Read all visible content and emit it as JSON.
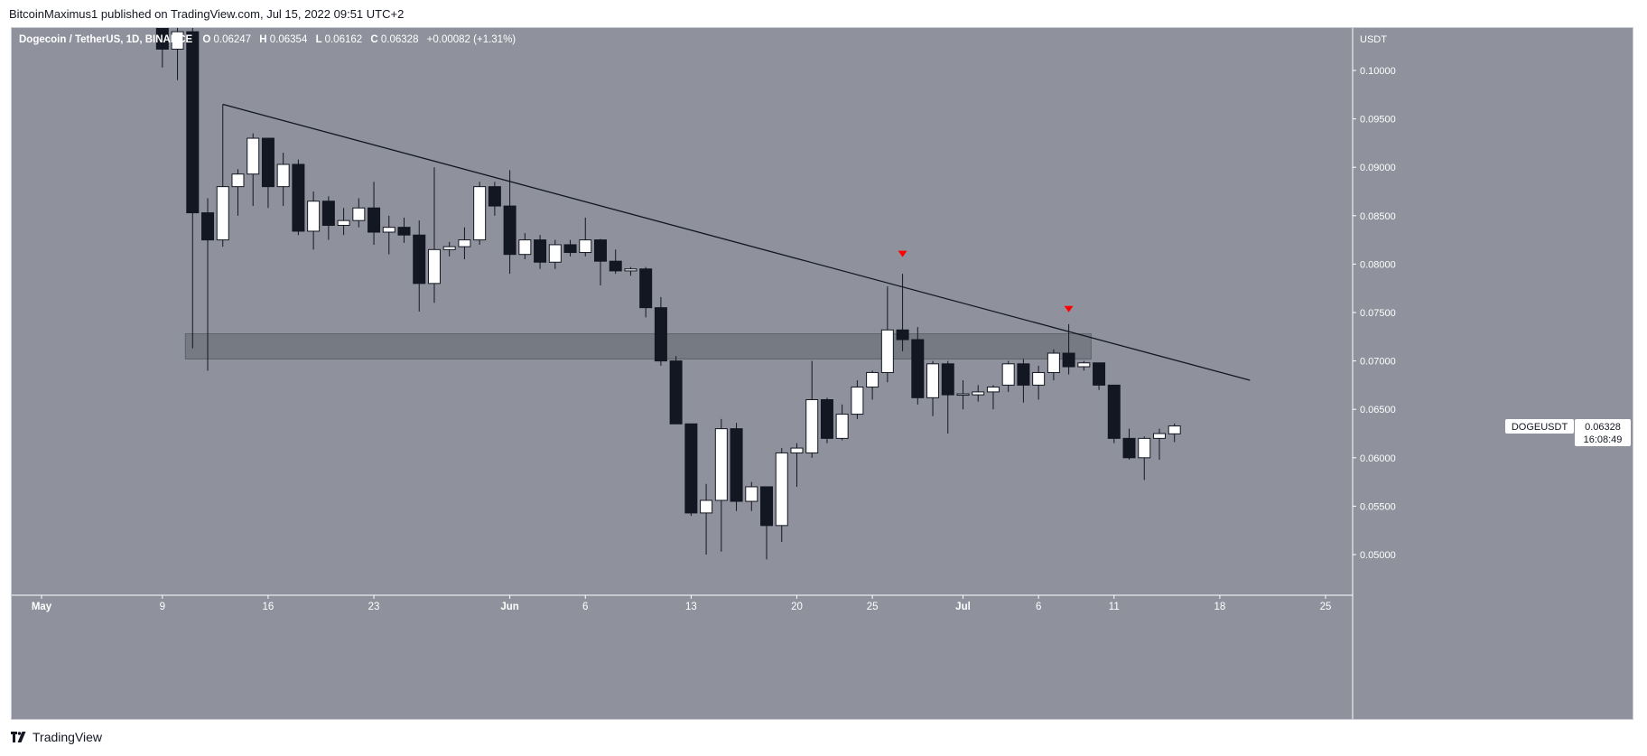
{
  "header": {
    "publish_text": "BitcoinMaximus1 published on TradingView.com, Jul 15, 2022 09:51 UTC+2"
  },
  "footer": {
    "brand": "TradingView"
  },
  "legend": {
    "symbol": "Dogecoin / TetherUS, 1D, BINANCE",
    "o_label": "O",
    "o_value": "0.06247",
    "h_label": "H",
    "h_value": "0.06354",
    "l_label": "L",
    "l_value": "0.06162",
    "c_label": "C",
    "c_value": "0.06328",
    "change": "+0.00082 (+1.31%)"
  },
  "price_scale": {
    "currency": "USDT",
    "tag_symbol": "DOGEUSDT",
    "tag_price": "0.06328",
    "tag_countdown": "16:08:49"
  },
  "colors": {
    "background": "#8f929c",
    "price_panel": "#8f929c",
    "up_body": "#ffffff",
    "down_body": "#131722",
    "wick": "#131722",
    "trendline": "#131722",
    "zone": "#6e717b",
    "marker": "#ff0000",
    "axis_text": "#ffffff"
  },
  "chart_data": {
    "type": "candlestick",
    "title": "Dogecoin / TetherUS, 1D, BINANCE",
    "ylabel": "USDT",
    "ylim": [
      0.0455,
      0.1025
    ],
    "yticks": [
      "0.10000",
      "0.09500",
      "0.09000",
      "0.08500",
      "0.08000",
      "0.07500",
      "0.07000",
      "0.06500",
      "0.06000",
      "0.05500",
      "0.05000"
    ],
    "xticks": [
      {
        "label": "May",
        "date": "2022-05-01"
      },
      {
        "label": "9",
        "date": "2022-05-09"
      },
      {
        "label": "16",
        "date": "2022-05-16"
      },
      {
        "label": "23",
        "date": "2022-05-23"
      },
      {
        "label": "Jun",
        "date": "2022-06-01"
      },
      {
        "label": "6",
        "date": "2022-06-06"
      },
      {
        "label": "13",
        "date": "2022-06-13"
      },
      {
        "label": "20",
        "date": "2022-06-20"
      },
      {
        "label": "25",
        "date": "2022-06-25"
      },
      {
        "label": "Jul",
        "date": "2022-07-01"
      },
      {
        "label": "6",
        "date": "2022-07-06"
      },
      {
        "label": "11",
        "date": "2022-07-11"
      },
      {
        "label": "18",
        "date": "2022-07-18"
      },
      {
        "label": "25",
        "date": "2022-07-25"
      }
    ],
    "candles": [
      {
        "date": "2022-05-09",
        "o": 0.1085,
        "h": 0.112,
        "l": 0.1003,
        "c": 0.1022
      },
      {
        "date": "2022-05-10",
        "o": 0.1022,
        "h": 0.106,
        "l": 0.099,
        "c": 0.104
      },
      {
        "date": "2022-05-11",
        "o": 0.104,
        "h": 0.108,
        "l": 0.0713,
        "c": 0.0853
      },
      {
        "date": "2022-05-12",
        "o": 0.0853,
        "h": 0.0868,
        "l": 0.069,
        "c": 0.0825
      },
      {
        "date": "2022-05-13",
        "o": 0.0825,
        "h": 0.0965,
        "l": 0.0818,
        "c": 0.088
      },
      {
        "date": "2022-05-14",
        "o": 0.088,
        "h": 0.0898,
        "l": 0.085,
        "c": 0.0893
      },
      {
        "date": "2022-05-15",
        "o": 0.0893,
        "h": 0.0935,
        "l": 0.086,
        "c": 0.093
      },
      {
        "date": "2022-05-16",
        "o": 0.093,
        "h": 0.093,
        "l": 0.0858,
        "c": 0.088
      },
      {
        "date": "2022-05-17",
        "o": 0.088,
        "h": 0.0915,
        "l": 0.086,
        "c": 0.0903
      },
      {
        "date": "2022-05-18",
        "o": 0.0903,
        "h": 0.0908,
        "l": 0.083,
        "c": 0.0834
      },
      {
        "date": "2022-05-19",
        "o": 0.0834,
        "h": 0.0875,
        "l": 0.0815,
        "c": 0.0865
      },
      {
        "date": "2022-05-20",
        "o": 0.0865,
        "h": 0.087,
        "l": 0.0825,
        "c": 0.084
      },
      {
        "date": "2022-05-21",
        "o": 0.084,
        "h": 0.0858,
        "l": 0.083,
        "c": 0.0845
      },
      {
        "date": "2022-05-22",
        "o": 0.0845,
        "h": 0.0868,
        "l": 0.0838,
        "c": 0.0858
      },
      {
        "date": "2022-05-23",
        "o": 0.0858,
        "h": 0.0885,
        "l": 0.082,
        "c": 0.0833
      },
      {
        "date": "2022-05-24",
        "o": 0.0833,
        "h": 0.085,
        "l": 0.081,
        "c": 0.0838
      },
      {
        "date": "2022-05-25",
        "o": 0.0838,
        "h": 0.0848,
        "l": 0.0822,
        "c": 0.083
      },
      {
        "date": "2022-05-26",
        "o": 0.083,
        "h": 0.0845,
        "l": 0.0751,
        "c": 0.078
      },
      {
        "date": "2022-05-27",
        "o": 0.078,
        "h": 0.09,
        "l": 0.076,
        "c": 0.0815
      },
      {
        "date": "2022-05-28",
        "o": 0.0815,
        "h": 0.0823,
        "l": 0.0808,
        "c": 0.0818
      },
      {
        "date": "2022-05-29",
        "o": 0.0818,
        "h": 0.0838,
        "l": 0.0805,
        "c": 0.0825
      },
      {
        "date": "2022-05-30",
        "o": 0.0825,
        "h": 0.0885,
        "l": 0.082,
        "c": 0.088
      },
      {
        "date": "2022-05-31",
        "o": 0.088,
        "h": 0.0885,
        "l": 0.085,
        "c": 0.086
      },
      {
        "date": "2022-06-01",
        "o": 0.086,
        "h": 0.0897,
        "l": 0.079,
        "c": 0.081
      },
      {
        "date": "2022-06-02",
        "o": 0.081,
        "h": 0.0832,
        "l": 0.0805,
        "c": 0.0825
      },
      {
        "date": "2022-06-03",
        "o": 0.0825,
        "h": 0.083,
        "l": 0.0795,
        "c": 0.0802
      },
      {
        "date": "2022-06-04",
        "o": 0.0802,
        "h": 0.0825,
        "l": 0.0795,
        "c": 0.082
      },
      {
        "date": "2022-06-05",
        "o": 0.082,
        "h": 0.0825,
        "l": 0.0808,
        "c": 0.0812
      },
      {
        "date": "2022-06-06",
        "o": 0.0812,
        "h": 0.0848,
        "l": 0.0808,
        "c": 0.0825
      },
      {
        "date": "2022-06-07",
        "o": 0.0825,
        "h": 0.0826,
        "l": 0.0778,
        "c": 0.0803
      },
      {
        "date": "2022-06-08",
        "o": 0.0803,
        "h": 0.0815,
        "l": 0.079,
        "c": 0.0793
      },
      {
        "date": "2022-06-09",
        "o": 0.0793,
        "h": 0.0797,
        "l": 0.0788,
        "c": 0.0795
      },
      {
        "date": "2022-06-10",
        "o": 0.0795,
        "h": 0.0797,
        "l": 0.0745,
        "c": 0.0755
      },
      {
        "date": "2022-06-11",
        "o": 0.0755,
        "h": 0.0766,
        "l": 0.0695,
        "c": 0.07
      },
      {
        "date": "2022-06-12",
        "o": 0.07,
        "h": 0.0705,
        "l": 0.0635,
        "c": 0.0635
      },
      {
        "date": "2022-06-13",
        "o": 0.0635,
        "h": 0.0635,
        "l": 0.054,
        "c": 0.0543
      },
      {
        "date": "2022-06-14",
        "o": 0.0543,
        "h": 0.0573,
        "l": 0.05,
        "c": 0.0556
      },
      {
        "date": "2022-06-15",
        "o": 0.0556,
        "h": 0.064,
        "l": 0.0503,
        "c": 0.063
      },
      {
        "date": "2022-06-16",
        "o": 0.063,
        "h": 0.0636,
        "l": 0.0545,
        "c": 0.0555
      },
      {
        "date": "2022-06-17",
        "o": 0.0555,
        "h": 0.0575,
        "l": 0.0545,
        "c": 0.057
      },
      {
        "date": "2022-06-18",
        "o": 0.057,
        "h": 0.057,
        "l": 0.0495,
        "c": 0.053
      },
      {
        "date": "2022-06-19",
        "o": 0.053,
        "h": 0.061,
        "l": 0.0513,
        "c": 0.0605
      },
      {
        "date": "2022-06-20",
        "o": 0.0605,
        "h": 0.0615,
        "l": 0.057,
        "c": 0.061
      },
      {
        "date": "2022-06-21",
        "o": 0.0605,
        "h": 0.07,
        "l": 0.06,
        "c": 0.066
      },
      {
        "date": "2022-06-22",
        "o": 0.066,
        "h": 0.0662,
        "l": 0.0615,
        "c": 0.062
      },
      {
        "date": "2022-06-23",
        "o": 0.062,
        "h": 0.0655,
        "l": 0.0618,
        "c": 0.0645
      },
      {
        "date": "2022-06-24",
        "o": 0.0645,
        "h": 0.068,
        "l": 0.064,
        "c": 0.0673
      },
      {
        "date": "2022-06-25",
        "o": 0.0673,
        "h": 0.069,
        "l": 0.066,
        "c": 0.0688
      },
      {
        "date": "2022-06-26",
        "o": 0.0688,
        "h": 0.0777,
        "l": 0.0678,
        "c": 0.0732
      },
      {
        "date": "2022-06-27",
        "o": 0.0732,
        "h": 0.079,
        "l": 0.071,
        "c": 0.0722
      },
      {
        "date": "2022-06-28",
        "o": 0.0722,
        "h": 0.0735,
        "l": 0.0655,
        "c": 0.0662
      },
      {
        "date": "2022-06-29",
        "o": 0.0662,
        "h": 0.07,
        "l": 0.0643,
        "c": 0.0697
      },
      {
        "date": "2022-06-30",
        "o": 0.0697,
        "h": 0.07,
        "l": 0.0625,
        "c": 0.0665
      },
      {
        "date": "2022-07-01",
        "o": 0.0665,
        "h": 0.068,
        "l": 0.065,
        "c": 0.0666
      },
      {
        "date": "2022-07-02",
        "o": 0.0665,
        "h": 0.0675,
        "l": 0.0658,
        "c": 0.0668
      },
      {
        "date": "2022-07-03",
        "o": 0.0668,
        "h": 0.0675,
        "l": 0.065,
        "c": 0.0673
      },
      {
        "date": "2022-07-04",
        "o": 0.0675,
        "h": 0.07,
        "l": 0.0668,
        "c": 0.0697
      },
      {
        "date": "2022-07-05",
        "o": 0.0697,
        "h": 0.0702,
        "l": 0.0657,
        "c": 0.0675
      },
      {
        "date": "2022-07-06",
        "o": 0.0675,
        "h": 0.0695,
        "l": 0.066,
        "c": 0.0688
      },
      {
        "date": "2022-07-07",
        "o": 0.0688,
        "h": 0.0712,
        "l": 0.068,
        "c": 0.0708
      },
      {
        "date": "2022-07-08",
        "o": 0.0708,
        "h": 0.0738,
        "l": 0.0686,
        "c": 0.0694
      },
      {
        "date": "2022-07-09",
        "o": 0.0694,
        "h": 0.07,
        "l": 0.069,
        "c": 0.0698
      },
      {
        "date": "2022-07-10",
        "o": 0.0698,
        "h": 0.0698,
        "l": 0.067,
        "c": 0.0675
      },
      {
        "date": "2022-07-11",
        "o": 0.0675,
        "h": 0.0675,
        "l": 0.0615,
        "c": 0.062
      },
      {
        "date": "2022-07-12",
        "o": 0.062,
        "h": 0.063,
        "l": 0.0598,
        "c": 0.06
      },
      {
        "date": "2022-07-13",
        "o": 0.06,
        "h": 0.0622,
        "l": 0.0577,
        "c": 0.062
      },
      {
        "date": "2022-07-14",
        "o": 0.062,
        "h": 0.063,
        "l": 0.0598,
        "c": 0.0625
      },
      {
        "date": "2022-07-15",
        "o": 0.06247,
        "h": 0.06354,
        "l": 0.06162,
        "c": 0.06328
      }
    ],
    "trendline": [
      {
        "date": "2022-05-13",
        "price": 0.0965
      },
      {
        "date": "2022-07-20",
        "price": 0.068
      }
    ],
    "support_zone": {
      "from_date": "2022-05-11",
      "to_date": "2022-07-09",
      "low": 0.0702,
      "high": 0.0728
    },
    "markers": [
      {
        "date": "2022-06-27",
        "price": 0.081
      },
      {
        "date": "2022-07-08",
        "price": 0.0753
      }
    ]
  }
}
